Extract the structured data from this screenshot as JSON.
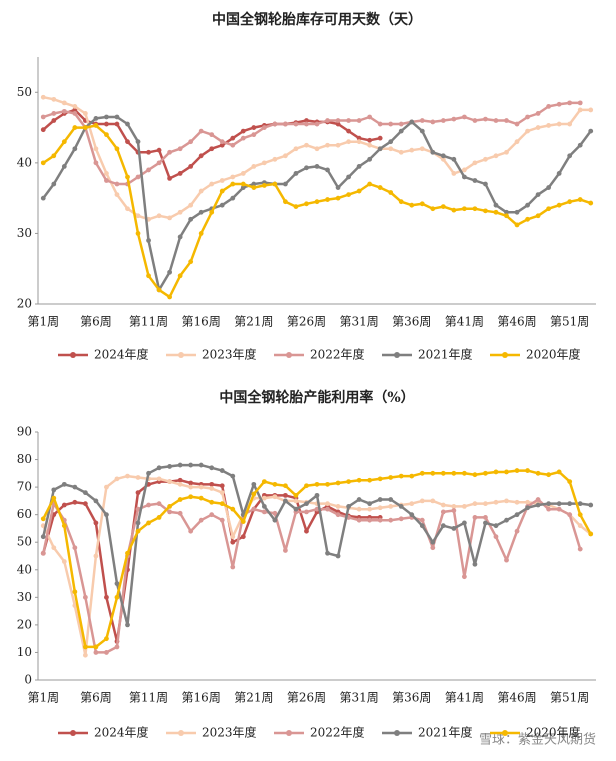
{
  "chart_data": [
    {
      "type": "line",
      "title": "中国全钢轮胎库存可用天数（天）",
      "categories": [
        "第1周",
        null,
        null,
        null,
        null,
        "第6周",
        null,
        null,
        null,
        null,
        "第11周",
        null,
        null,
        null,
        null,
        "第16周",
        null,
        null,
        null,
        null,
        "第21周",
        null,
        null,
        null,
        null,
        "第26周",
        null,
        null,
        null,
        null,
        "第31周",
        null,
        null,
        null,
        null,
        "第36周",
        null,
        null,
        null,
        null,
        "第41周",
        null,
        null,
        null,
        null,
        "第46周",
        null,
        null,
        null,
        null,
        "第51周",
        null,
        null
      ],
      "ylim": [
        20,
        55
      ],
      "yticks": [
        20,
        30,
        40,
        50
      ],
      "grid": false,
      "legend": "bottom",
      "series": [
        {
          "name": "2024年度",
          "color": "#c0504d",
          "values": [
            44.7,
            46,
            47,
            47.5,
            46,
            45.5,
            45.5,
            45.5,
            43,
            41.5,
            41.5,
            41.8,
            37.8,
            38.5,
            39.5,
            41,
            42,
            42.5,
            43.5,
            44.5,
            45,
            45.3,
            45.5,
            45.5,
            45.7,
            46,
            45.8,
            45.8,
            45.5,
            44.5,
            43.5,
            43.2,
            43.5,
            null,
            null,
            null,
            null,
            null,
            null,
            null,
            null,
            null,
            null,
            null,
            null,
            null,
            null,
            null,
            null,
            null,
            null,
            null,
            null
          ]
        },
        {
          "name": "2023年度",
          "color": "#f8cbad",
          "values": [
            49.3,
            49,
            48.5,
            48,
            47,
            42,
            38.5,
            35.5,
            33.5,
            32.5,
            32,
            32.5,
            32.2,
            33,
            34,
            36,
            37,
            37.5,
            38,
            38.5,
            39.5,
            40,
            40.5,
            41,
            42,
            42.5,
            42,
            42.5,
            42.5,
            43,
            43,
            42.5,
            42,
            42,
            41.5,
            41.8,
            42,
            41.5,
            40.5,
            38.5,
            39,
            40,
            40.5,
            41,
            41.5,
            43,
            44.5,
            45,
            45.3,
            45.5,
            45.5,
            47.5,
            47.5
          ]
        },
        {
          "name": "2022年度",
          "color": "#d99694",
          "values": [
            46.5,
            47,
            47.3,
            47,
            45,
            40,
            37.5,
            37,
            37,
            38,
            39,
            40,
            41.5,
            42,
            43,
            44.5,
            44,
            43,
            42.5,
            43.5,
            44,
            45,
            45.5,
            45.5,
            45.5,
            45.5,
            45.5,
            46,
            46,
            46,
            46,
            46.5,
            45.5,
            45.5,
            45.5,
            45.8,
            46,
            45.8,
            46,
            46.2,
            46.5,
            46,
            46.2,
            46,
            46,
            45.5,
            46.5,
            47,
            48,
            48.3,
            48.5,
            48.5,
            null
          ]
        },
        {
          "name": "2021年度",
          "color": "#7f7f7f",
          "values": [
            35,
            37,
            39.5,
            42,
            45,
            46.3,
            46.5,
            46.5,
            45.5,
            43,
            29,
            22,
            24.5,
            29.5,
            32,
            33,
            33.5,
            34,
            35,
            36.5,
            37,
            37.2,
            37,
            37,
            38.5,
            39.3,
            39.5,
            39,
            36.5,
            38,
            39.5,
            40.5,
            42,
            43,
            44.5,
            45.8,
            44.5,
            41.5,
            41,
            40.5,
            38,
            37.5,
            37,
            34,
            33,
            33,
            34,
            35.5,
            36.5,
            38.5,
            41,
            42.5,
            44.5
          ]
        },
        {
          "name": "2020年度",
          "color": "#f5b800",
          "values": [
            40,
            41,
            43,
            45,
            45,
            45.3,
            44,
            42,
            38,
            30,
            24,
            22,
            21,
            24,
            26,
            30,
            33,
            36,
            37,
            37,
            36.5,
            36.8,
            37,
            34.5,
            33.8,
            34.2,
            34.5,
            34.8,
            35,
            35.5,
            36,
            37,
            36.5,
            35.8,
            34.5,
            34,
            34.2,
            33.5,
            33.8,
            33.3,
            33.5,
            33.5,
            33.2,
            33,
            32.5,
            31.2,
            32,
            32.5,
            33.5,
            34,
            34.5,
            34.8,
            34.3
          ]
        }
      ]
    },
    {
      "type": "line",
      "title": "中国全钢轮胎产能利用率（%）",
      "categories": [
        "第1周",
        null,
        null,
        null,
        null,
        "第6周",
        null,
        null,
        null,
        null,
        "第11周",
        null,
        null,
        null,
        null,
        "第16周",
        null,
        null,
        null,
        null,
        "第21周",
        null,
        null,
        null,
        null,
        "第26周",
        null,
        null,
        null,
        null,
        "第31周",
        null,
        null,
        null,
        null,
        "第36周",
        null,
        null,
        null,
        null,
        "第41周",
        null,
        null,
        null,
        null,
        "第46周",
        null,
        null,
        null,
        null,
        "第51周",
        null,
        null
      ],
      "ylim": [
        0,
        90
      ],
      "yticks": [
        0,
        10,
        20,
        30,
        40,
        50,
        60,
        70,
        80,
        90
      ],
      "grid": false,
      "legend": "bottom",
      "series": [
        {
          "name": "2024年度",
          "color": "#c0504d",
          "values": [
            46,
            60,
            63.5,
            64.5,
            64,
            57,
            30,
            14,
            40,
            68,
            71,
            72,
            72,
            72.5,
            71.5,
            71,
            71,
            70.5,
            50,
            52,
            62,
            67,
            67,
            67,
            66,
            54,
            61,
            63,
            61,
            59.5,
            59,
            59,
            59,
            null,
            null,
            null,
            null,
            null,
            null,
            null,
            null,
            null,
            null,
            null,
            null,
            null,
            null,
            null,
            null,
            null,
            null,
            null,
            null
          ]
        },
        {
          "name": "2023年度",
          "color": "#f8cbad",
          "values": [
            56,
            48,
            43,
            27,
            9,
            45,
            70,
            73,
            74,
            73.5,
            73,
            73,
            72,
            71,
            70,
            70,
            69.5,
            68,
            52,
            60,
            66,
            66,
            66.5,
            65,
            65,
            64.5,
            64,
            64,
            63,
            62.5,
            62,
            62,
            62.5,
            63,
            63.5,
            64,
            65,
            65,
            63.5,
            63,
            63,
            64,
            64,
            64.5,
            65,
            64.5,
            64.5,
            64,
            63.5,
            62,
            60,
            56,
            53
          ]
        },
        {
          "name": "2022年度",
          "color": "#d99694",
          "values": [
            46,
            64,
            58,
            48,
            30,
            10,
            10,
            12,
            45,
            62,
            63.5,
            64,
            61,
            60.5,
            54,
            58,
            60,
            58,
            41,
            60,
            62,
            61,
            60.5,
            47,
            61,
            61,
            62,
            62,
            60,
            59,
            58,
            58,
            58,
            58,
            58.5,
            59,
            58,
            48,
            61,
            61.5,
            37.5,
            59,
            59,
            52,
            43.5,
            54,
            63,
            65.5,
            62,
            62,
            60,
            47.5,
            null
          ]
        },
        {
          "name": "2021年度",
          "color": "#7f7f7f",
          "values": [
            52,
            69,
            71,
            70,
            68,
            65,
            60,
            35,
            20,
            57,
            75,
            77,
            77.5,
            78,
            78,
            78,
            77,
            76,
            74,
            60,
            71,
            63,
            58,
            65,
            62,
            64,
            67,
            46,
            45,
            63,
            65.5,
            64,
            65.5,
            65.5,
            63,
            60,
            56,
            50,
            56,
            55,
            57,
            42,
            57,
            56,
            58,
            60,
            62.5,
            63.5,
            64,
            64,
            64,
            64,
            63.5
          ]
        },
        {
          "name": "2020年度",
          "color": "#f5b800",
          "values": [
            58.5,
            66,
            56,
            32,
            12,
            12,
            15,
            30,
            46,
            54,
            57,
            59,
            63,
            65.5,
            66.5,
            66,
            64.5,
            64,
            62,
            57.5,
            67.5,
            72,
            71,
            70.5,
            67,
            70.5,
            71,
            71,
            71.5,
            72,
            72.5,
            72.5,
            73,
            73.5,
            74,
            74,
            75,
            75,
            75,
            75,
            75,
            74.5,
            75,
            75.5,
            75.5,
            76,
            76,
            75,
            74.5,
            75.5,
            72,
            60,
            53
          ]
        }
      ]
    }
  ],
  "watermark": "雪球：紫金天风期货"
}
